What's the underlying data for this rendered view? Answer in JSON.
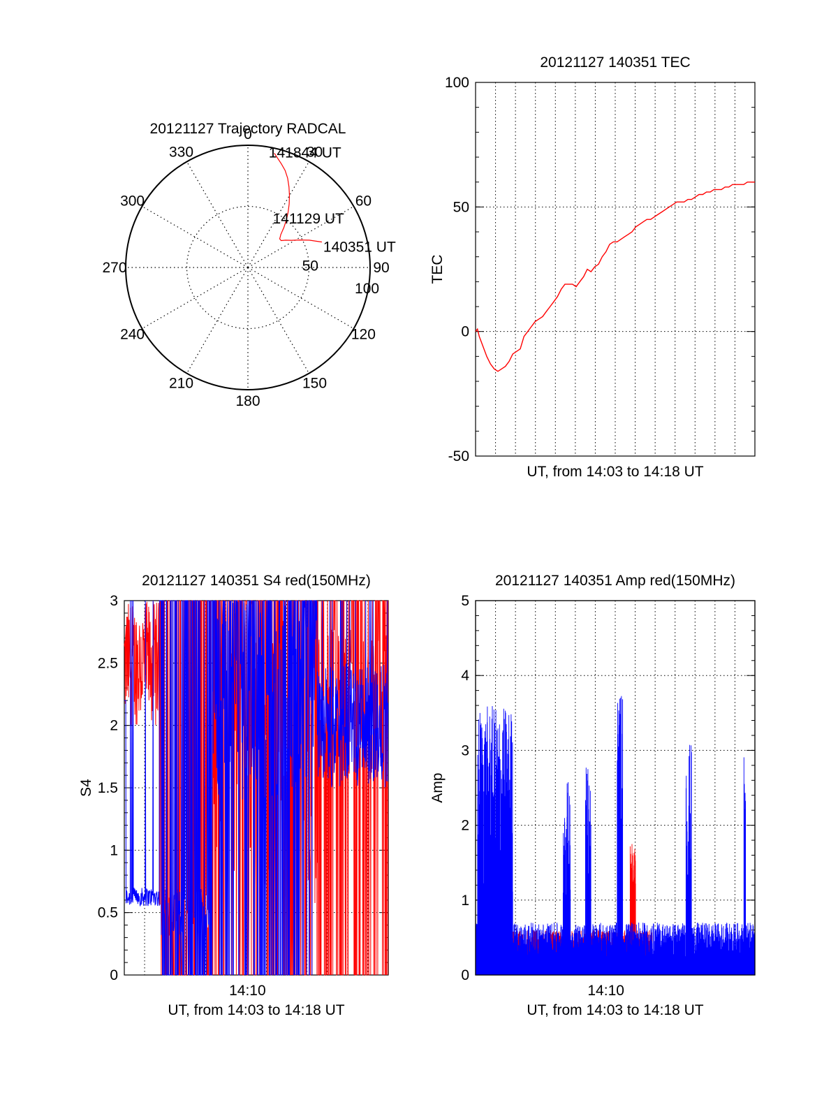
{
  "chart_data": [
    {
      "type": "polar",
      "title": "20121127 Trajectory RADCAL",
      "angle_labels": [
        "0",
        "30",
        "60",
        "90",
        "120",
        "150",
        "180",
        "210",
        "240",
        "270",
        "300",
        "330"
      ],
      "radial_labels": [
        "50",
        "100"
      ],
      "rlim": [
        0,
        100
      ],
      "grid": true,
      "series": [
        {
          "color": "#ff0000",
          "points": [
            [
              13,
              96
            ],
            [
              15,
              93
            ],
            [
              18,
              89
            ],
            [
              21,
              85
            ],
            [
              24,
              80
            ],
            [
              27,
              74
            ],
            [
              30,
              68
            ],
            [
              33,
              62
            ],
            [
              36,
              56
            ],
            [
              39,
              50
            ],
            [
              42,
              44
            ],
            [
              45,
              38
            ],
            [
              46,
              37
            ],
            [
              48,
              35
            ],
            [
              51,
              35
            ],
            [
              54,
              38
            ],
            [
              58,
              42
            ],
            [
              62,
              48
            ],
            [
              66,
              55
            ],
            [
              69,
              60
            ],
            [
              71,
              64
            ]
          ]
        }
      ],
      "annotations": [
        {
          "text": "141844 UT",
          "at_az": 13,
          "at_r": 96
        },
        {
          "text": "141129 UT",
          "at_az": 48,
          "at_r": 35
        },
        {
          "text": "140351 UT",
          "at_az": 71,
          "at_r": 64
        }
      ]
    },
    {
      "type": "line",
      "title": "20121127 140351 TEC",
      "xlabel": "UT, from 14:03 to 14:18 UT",
      "ylabel": "TEC",
      "ylim": [
        -50,
        100
      ],
      "yticks": [
        "-50",
        "0",
        "50",
        "100"
      ],
      "xlim": [
        0,
        15
      ],
      "grid": true,
      "series": [
        {
          "color": "#ff0000",
          "x": [
            0,
            0.1,
            0.2,
            0.4,
            0.6,
            0.8,
            1.0,
            1.2,
            1.4,
            1.6,
            1.8,
            2.0,
            2.2,
            2.4,
            2.6,
            2.8,
            3.0,
            3.2,
            3.4,
            3.6,
            3.8,
            4.0,
            4.2,
            4.4,
            4.6,
            4.8,
            5.0,
            5.2,
            5.4,
            5.6,
            5.8,
            6.0,
            6.2,
            6.4,
            6.6,
            6.8,
            7.0,
            7.2,
            7.4,
            7.6,
            7.8,
            8.0,
            8.2,
            8.4,
            8.6,
            8.8,
            9.0,
            9.2,
            9.4,
            9.6,
            9.8,
            10.0,
            10.2,
            10.4,
            10.6,
            10.8,
            11.0,
            11.2,
            11.4,
            11.6,
            11.8,
            12.0,
            12.2,
            12.4,
            12.6,
            12.8,
            13.0,
            13.2,
            13.4,
            13.6,
            13.8,
            14.0,
            14.2,
            14.4,
            14.6,
            14.8,
            15.0
          ],
          "y": [
            0,
            1,
            -2,
            -6,
            -10,
            -13,
            -15,
            -16,
            -15,
            -14,
            -12,
            -9,
            -8,
            -7,
            -2,
            0,
            2,
            4,
            5,
            6,
            8,
            10,
            12,
            14,
            17,
            19,
            19,
            19,
            18,
            20,
            22,
            25,
            24,
            26,
            27,
            30,
            32,
            35,
            36,
            36,
            37,
            38,
            39,
            40,
            42,
            43,
            44,
            45,
            45,
            46,
            47,
            48,
            49,
            50,
            51,
            52,
            52,
            52,
            53,
            53,
            54,
            55,
            55,
            56,
            56,
            57,
            57,
            57,
            58,
            58,
            59,
            59,
            59,
            59,
            60,
            60,
            60
          ]
        }
      ]
    },
    {
      "type": "line",
      "title": "20121127 140351 S4 red(150MHz)",
      "xlabel": "UT, from 14:03 to 14:18 UT",
      "ylabel": "S4",
      "ylim": [
        0,
        3
      ],
      "yticks": [
        "0",
        "0.5",
        "1",
        "1.5",
        "2",
        "2.5",
        "3"
      ],
      "xlim": [
        0,
        15
      ],
      "xticks": [
        {
          "x": 7,
          "label": "14:10"
        }
      ],
      "grid": true,
      "series": [
        {
          "name": "",
          "color": "#ff0000"
        },
        {
          "name": "",
          "color": "#0000ff"
        }
      ]
    },
    {
      "type": "line",
      "title": "20121127 140351 Amp red(150MHz)",
      "xlabel": "UT, from 14:03 to 14:18 UT",
      "ylabel": "Amp",
      "ylim": [
        0,
        5
      ],
      "yticks": [
        "0",
        "1",
        "2",
        "3",
        "4",
        "5"
      ],
      "xlim": [
        0,
        15
      ],
      "xticks": [
        {
          "x": 7,
          "label": "14:10"
        }
      ],
      "grid": true,
      "series": [
        {
          "name": "",
          "color": "#ff0000"
        },
        {
          "name": "",
          "color": "#0000ff"
        }
      ]
    }
  ]
}
